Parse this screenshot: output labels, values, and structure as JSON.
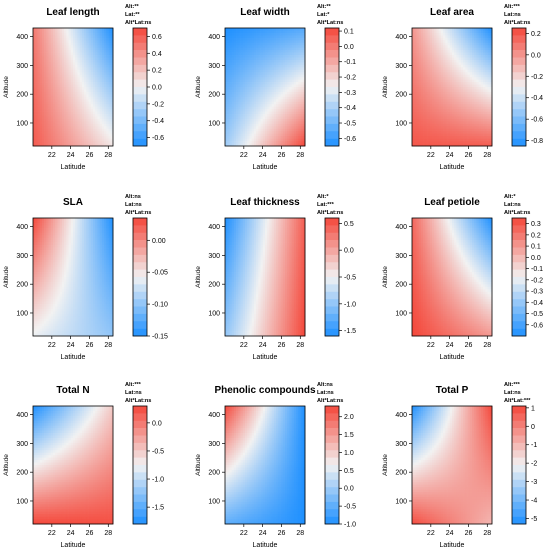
{
  "chart_data": [
    {
      "type": "heatmap",
      "title": "Leaf length",
      "xlabel": "Latitude",
      "ylabel": "Altitude",
      "xticks": [
        22,
        24,
        26,
        28
      ],
      "yticks": [
        100,
        200,
        300,
        400
      ],
      "xlim": [
        20,
        28.5
      ],
      "ylim": [
        20,
        430
      ],
      "stats": [
        "Alt:**",
        "Lat:**",
        "Alt*Lat:ns"
      ],
      "colorbar": {
        "min": -0.7,
        "max": 0.7,
        "ticks": [
          "0.6",
          "0.4",
          "0.2",
          "0.0",
          "-0.2",
          "-0.4",
          "-0.6"
        ],
        "tick_values": [
          0.6,
          0.4,
          0.2,
          0.0,
          -0.2,
          -0.4,
          -0.6
        ]
      },
      "field_corners": {
        "bottom_left": 0.62,
        "bottom_right": 0.05,
        "top_left": 0.5,
        "top_right": -0.7
      }
    },
    {
      "type": "heatmap",
      "title": "Leaf width",
      "xlabel": "Latitude",
      "ylabel": "Altitude",
      "xticks": [
        22,
        24,
        26,
        28
      ],
      "yticks": [
        100,
        200,
        300,
        400
      ],
      "xlim": [
        20,
        28.5
      ],
      "ylim": [
        20,
        430
      ],
      "stats": [
        "Alt:**",
        "Lat:*",
        "Alt*Lat:ns"
      ],
      "colorbar": {
        "min": -0.65,
        "max": 0.12,
        "ticks": [
          "0.1",
          "0.0",
          "-0.1",
          "-0.2",
          "-0.3",
          "-0.4",
          "-0.5",
          "-0.6"
        ],
        "tick_values": [
          0.1,
          0.0,
          -0.1,
          -0.2,
          -0.3,
          -0.4,
          -0.5,
          -0.6
        ]
      },
      "field_corners": {
        "bottom_left": -0.42,
        "bottom_right": 0.12,
        "top_left": -0.65,
        "top_right": -0.55
      }
    },
    {
      "type": "heatmap",
      "title": "Leaf area",
      "xlabel": "Latitude",
      "ylabel": "Altitude",
      "xticks": [
        22,
        24,
        26,
        28
      ],
      "yticks": [
        100,
        200,
        300,
        400
      ],
      "xlim": [
        20,
        28.5
      ],
      "ylim": [
        20,
        430
      ],
      "stats": [
        "Alt:***",
        "Lat:ns",
        "Alt*Lat:ns"
      ],
      "colorbar": {
        "min": -0.85,
        "max": 0.25,
        "ticks": [
          "0.2",
          "0.0",
          "-0.2",
          "-0.4",
          "-0.6",
          "-0.8"
        ],
        "tick_values": [
          0.2,
          0.0,
          -0.2,
          -0.4,
          -0.6,
          -0.8
        ]
      },
      "field_corners": {
        "bottom_left": 0.2,
        "bottom_right": 0.18,
        "top_left": 0.0,
        "top_right": -0.85
      }
    },
    {
      "type": "heatmap",
      "title": "SLA",
      "xlabel": "Latitude",
      "ylabel": "Altitude",
      "xticks": [
        22,
        24,
        26,
        28
      ],
      "yticks": [
        100,
        200,
        300,
        400
      ],
      "xlim": [
        20,
        28.5
      ],
      "ylim": [
        20,
        430
      ],
      "stats": [
        "Alt:ns",
        "Lat:ns",
        "Alt*Lat:ns"
      ],
      "colorbar": {
        "min": -0.15,
        "max": 0.035,
        "ticks": [
          "0.00",
          "-0.05",
          "-0.10",
          "-0.15"
        ],
        "tick_values": [
          0.0,
          -0.05,
          -0.1,
          -0.15
        ]
      },
      "field_corners": {
        "bottom_left": -0.06,
        "bottom_right": -0.1,
        "top_left": 0.035,
        "top_right": -0.15
      }
    },
    {
      "type": "heatmap",
      "title": "Leaf thickness",
      "xlabel": "Latitude",
      "ylabel": "Altitude",
      "xticks": [
        22,
        24,
        26,
        28
      ],
      "yticks": [
        100,
        200,
        300,
        400
      ],
      "xlim": [
        20,
        28.5
      ],
      "ylim": [
        20,
        430
      ],
      "stats": [
        "Alt:*",
        "Lat:***",
        "Alt*Lat:ns"
      ],
      "colorbar": {
        "min": -1.6,
        "max": 0.6,
        "ticks": [
          "0.5",
          "0.0",
          "-0.5",
          "-1.0",
          "-1.5"
        ],
        "tick_values": [
          0.5,
          0.0,
          -0.5,
          -1.0,
          -1.5
        ]
      },
      "field_corners": {
        "bottom_left": -1.0,
        "bottom_right": 0.6,
        "top_left": -1.6,
        "top_right": 0.45
      }
    },
    {
      "type": "heatmap",
      "title": "Leaf petiole",
      "xlabel": "Latitude",
      "ylabel": "Altitude",
      "xticks": [
        22,
        24,
        26,
        28
      ],
      "yticks": [
        100,
        200,
        300,
        400
      ],
      "xlim": [
        20,
        28.5
      ],
      "ylim": [
        20,
        430
      ],
      "stats": [
        "Alt:*",
        "Lat:ns",
        "Alt*Lat:ns"
      ],
      "colorbar": {
        "min": -0.7,
        "max": 0.35,
        "ticks": [
          "0.3",
          "0.2",
          "0.1",
          "0.0",
          "-0.1",
          "-0.2",
          "-0.3",
          "-0.4",
          "-0.5",
          "-0.6"
        ],
        "tick_values": [
          0.3,
          0.2,
          0.1,
          0.0,
          -0.1,
          -0.2,
          -0.3,
          -0.4,
          -0.5,
          -0.6
        ]
      },
      "field_corners": {
        "bottom_left": 0.35,
        "bottom_right": 0.1,
        "top_left": 0.25,
        "top_right": -0.7
      }
    },
    {
      "type": "heatmap",
      "title": "Total N",
      "xlabel": "Latitude",
      "ylabel": "Altitude",
      "xticks": [
        22,
        24,
        26,
        28
      ],
      "yticks": [
        100,
        200,
        300,
        400
      ],
      "xlim": [
        20,
        28.5
      ],
      "ylim": [
        20,
        430
      ],
      "stats": [
        "Alt:***",
        "Lat:ns",
        "Alt*Lat:ns"
      ],
      "colorbar": {
        "min": -1.8,
        "max": 0.3,
        "ticks": [
          "0.0",
          "-0.5",
          "-1.0",
          "-1.5"
        ],
        "tick_values": [
          0.0,
          -0.5,
          -1.0,
          -1.5
        ]
      },
      "field_corners": {
        "bottom_left": 0.3,
        "bottom_right": 0.25,
        "top_left": -1.8,
        "top_right": -0.5
      }
    },
    {
      "type": "heatmap",
      "title": "Phenolic compounds",
      "xlabel": "Latitude",
      "ylabel": "Altitude",
      "xticks": [
        22,
        24,
        26,
        28
      ],
      "yticks": [
        100,
        200,
        300,
        400
      ],
      "xlim": [
        20,
        28.5
      ],
      "ylim": [
        20,
        430
      ],
      "stats": [
        "Alt:ns",
        "Lat:ns",
        "Alt*Lat:ns"
      ],
      "colorbar": {
        "min": -1.0,
        "max": 2.3,
        "ticks": [
          "2.0",
          "1.5",
          "1.0",
          "0.5",
          "0.0",
          "-0.5",
          "-1.0"
        ],
        "tick_values": [
          2.0,
          1.5,
          1.0,
          0.5,
          0.0,
          -0.5,
          -1.0
        ]
      },
      "field_corners": {
        "bottom_left": -0.5,
        "bottom_right": -1.0,
        "top_left": 2.3,
        "top_right": -1.0
      }
    },
    {
      "type": "heatmap",
      "title": "Total P",
      "xlabel": "Latitude",
      "ylabel": "Altitude",
      "xticks": [
        22,
        24,
        26,
        28
      ],
      "yticks": [
        100,
        200,
        300,
        400
      ],
      "xlim": [
        20,
        28.5
      ],
      "ylim": [
        20,
        430
      ],
      "stats": [
        "Alt:***",
        "Lat:ns",
        "Alt*Lat:***"
      ],
      "colorbar": {
        "min": -5.3,
        "max": 1.1,
        "ticks": [
          "1",
          "0",
          "-1",
          "-2",
          "-3",
          "-4",
          "-5"
        ],
        "tick_values": [
          1,
          0,
          -1,
          -2,
          -3,
          -4,
          -5
        ]
      },
      "field_corners": {
        "bottom_left": 1.0,
        "bottom_right": -1.0,
        "top_left": -5.3,
        "top_right": 1.1
      }
    }
  ],
  "colors": {
    "high": "#f4473a",
    "mid": "#f2f2f2",
    "low": "#1e90ff",
    "text": "#000000"
  }
}
